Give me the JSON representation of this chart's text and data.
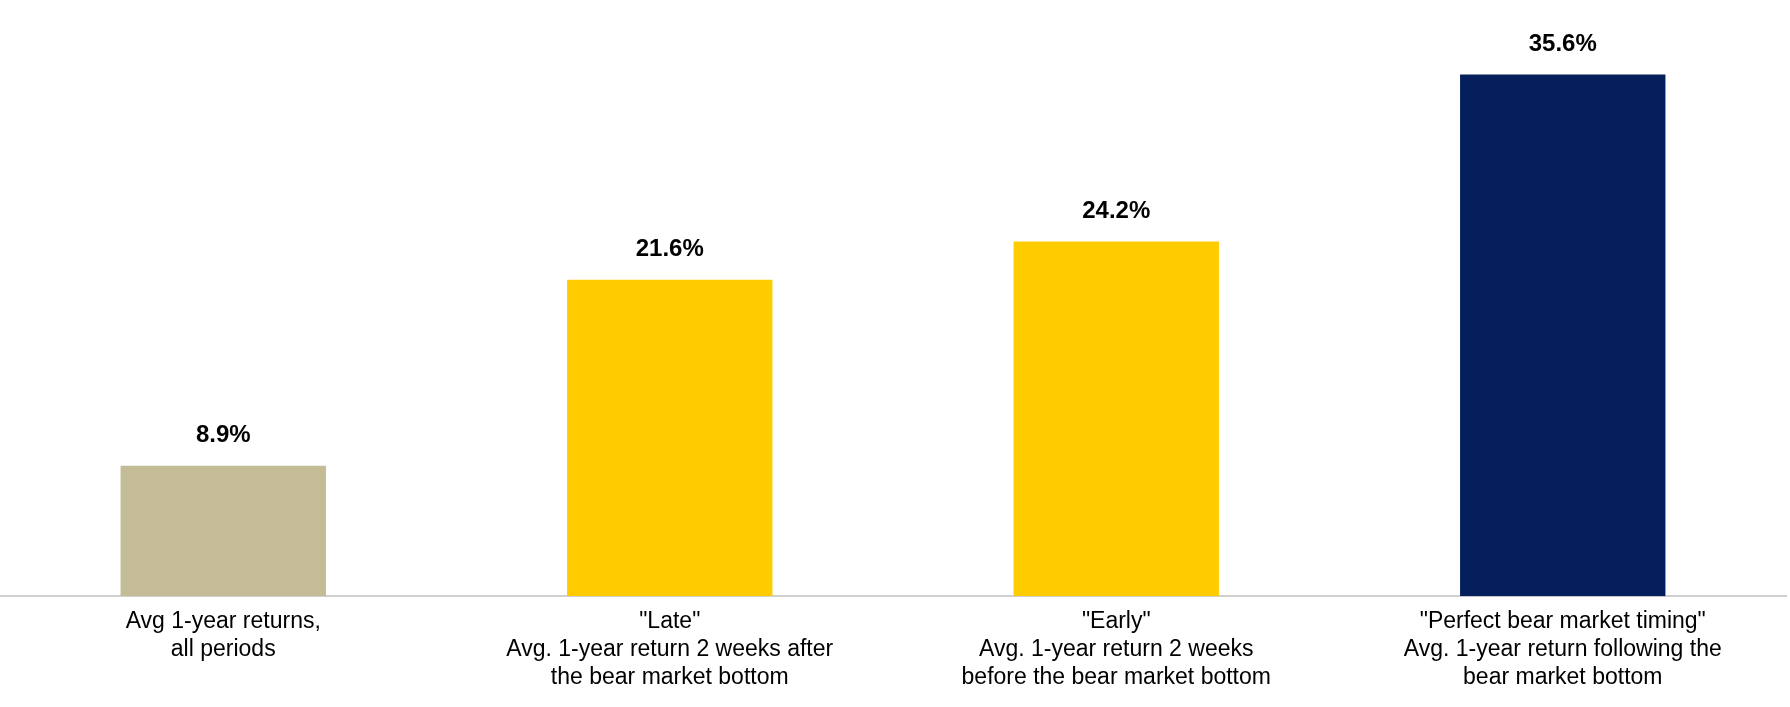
{
  "chart_data": {
    "type": "bar",
    "categories": [
      "Avg 1-year returns,\nall periods",
      "\"Late\"\nAvg. 1-year return 2 weeks after\nthe bear market bottom",
      "\"Early\"\nAvg. 1-year return 2 weeks\nbefore the bear market bottom",
      "\"Perfect bear market timing\"\nAvg. 1-year return following the\nbear market bottom"
    ],
    "values": [
      8.9,
      21.6,
      24.2,
      35.6
    ],
    "colors": [
      "#c4bc96",
      "#ffcc00",
      "#ffcc00",
      "#041f5c"
    ],
    "value_labels": [
      "8.9%",
      "21.6%",
      "24.2%",
      "35.6%"
    ],
    "tick_labels": "x",
    "grid": false,
    "legend": false
  }
}
